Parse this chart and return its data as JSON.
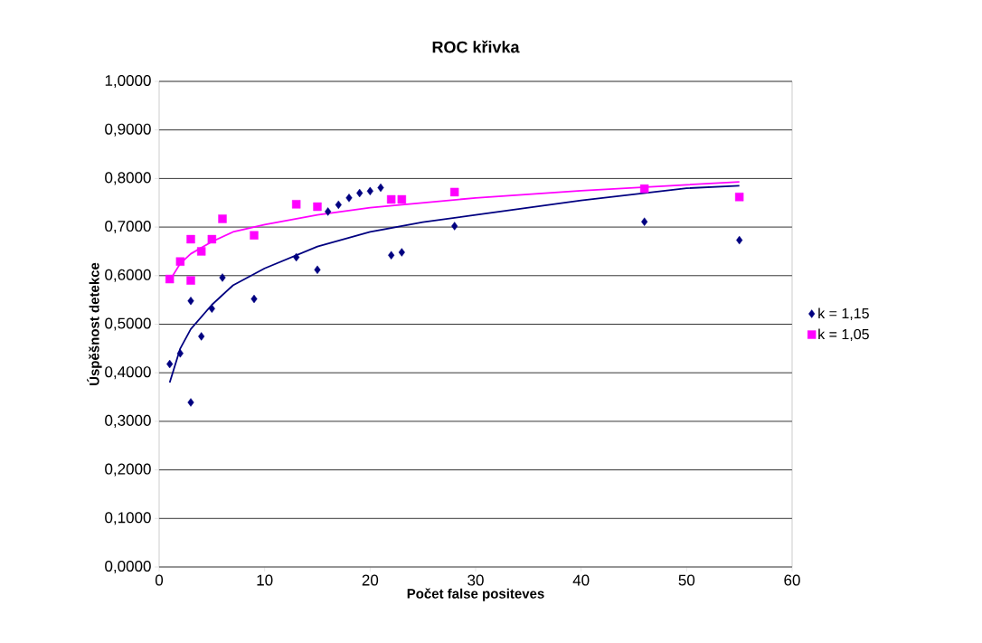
{
  "chart_data": {
    "type": "scatter",
    "title": "ROC křivka",
    "xlabel": "Počet false positeves",
    "ylabel": "Úspěšnost detekce",
    "xlim": [
      0,
      60
    ],
    "xticks": [
      0,
      10,
      20,
      30,
      40,
      50,
      60
    ],
    "ylim": [
      0,
      1
    ],
    "yticks": [
      {
        "value": 0,
        "label": "0,0000"
      },
      {
        "value": 0.1,
        "label": "0,1000"
      },
      {
        "value": 0.2,
        "label": "0,2000"
      },
      {
        "value": 0.3,
        "label": "0,3000"
      },
      {
        "value": 0.4,
        "label": "0,4000"
      },
      {
        "value": 0.5,
        "label": "0,5000"
      },
      {
        "value": 0.6,
        "label": "0,6000"
      },
      {
        "value": 0.7,
        "label": "0,7000"
      },
      {
        "value": 0.8,
        "label": "0,8000"
      },
      {
        "value": 0.9,
        "label": "0,9000"
      },
      {
        "value": 1,
        "label": "1,0000"
      }
    ],
    "grid": "y",
    "legend": "right",
    "series": [
      {
        "name": "k = 1,15",
        "color": "#000080",
        "marker": "diamond",
        "x": [
          1,
          2,
          3,
          3,
          4,
          5,
          6,
          9,
          13,
          15,
          16,
          17,
          18,
          19,
          20,
          21,
          22,
          23,
          28,
          46,
          55
        ],
        "values": [
          0.418,
          0.44,
          0.548,
          0.339,
          0.475,
          0.532,
          0.596,
          0.552,
          0.638,
          0.612,
          0.732,
          0.746,
          0.76,
          0.77,
          0.774,
          0.781,
          0.642,
          0.648,
          0.702,
          0.711,
          0.673
        ]
      },
      {
        "name": "k = 1,05",
        "color": "#ff00ff",
        "marker": "square",
        "x": [
          1,
          2,
          3,
          3,
          4,
          5,
          6,
          9,
          13,
          15,
          22,
          23,
          28,
          46,
          55
        ],
        "values": [
          0.593,
          0.629,
          0.675,
          0.59,
          0.65,
          0.675,
          0.717,
          0.683,
          0.747,
          0.742,
          0.757,
          0.757,
          0.772,
          0.779,
          0.762
        ]
      },
      {
        "type": "line",
        "color": "#000080",
        "marker": "none",
        "x": [
          1,
          2,
          3,
          5,
          7,
          10,
          15,
          20,
          25,
          30,
          40,
          50,
          55
        ],
        "values": [
          0.38,
          0.45,
          0.49,
          0.54,
          0.58,
          0.615,
          0.66,
          0.69,
          0.71,
          0.725,
          0.755,
          0.78,
          0.785
        ]
      },
      {
        "type": "line",
        "color": "#ff00ff",
        "marker": "none",
        "x": [
          1,
          2,
          3,
          5,
          7,
          10,
          15,
          20,
          30,
          40,
          55
        ],
        "values": [
          0.59,
          0.625,
          0.645,
          0.67,
          0.69,
          0.705,
          0.725,
          0.74,
          0.76,
          0.775,
          0.793
        ]
      }
    ]
  }
}
